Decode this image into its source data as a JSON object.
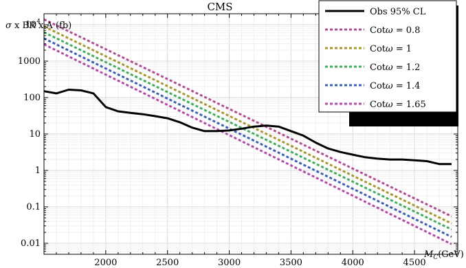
{
  "chart_data": {
    "type": "line",
    "title": "CMS",
    "ylabel": "σ x BR x A (fb)",
    "xlabel": "M_C(GeV)",
    "xlabel_main": "M",
    "xlabel_sub": "C",
    "xlabel_unit": "(GeV)",
    "xlim": [
      1500,
      4850
    ],
    "ylim": [
      0.005,
      20000
    ],
    "yscale": "log",
    "grid": true,
    "legend_position": "top-right",
    "x_ticks": [
      2000,
      2500,
      3000,
      3500,
      4000,
      4500
    ],
    "y_ticks": [
      {
        "value": 0.01,
        "label": "0.01"
      },
      {
        "value": 0.1,
        "label": "0.1"
      },
      {
        "value": 1,
        "label": "1"
      },
      {
        "value": 10,
        "label": "10"
      },
      {
        "value": 100,
        "label": "100"
      },
      {
        "value": 1000,
        "label": "1000"
      },
      {
        "value": 10000,
        "label": "10",
        "sup": "4"
      }
    ],
    "observed": {
      "name": "Obs 95% CL",
      "color": "#000000",
      "points": [
        [
          1500,
          150
        ],
        [
          1600,
          130
        ],
        [
          1700,
          165
        ],
        [
          1800,
          158
        ],
        [
          1900,
          130
        ],
        [
          2000,
          55
        ],
        [
          2100,
          42
        ],
        [
          2200,
          38
        ],
        [
          2300,
          35
        ],
        [
          2400,
          31
        ],
        [
          2500,
          27
        ],
        [
          2600,
          21
        ],
        [
          2700,
          15
        ],
        [
          2800,
          12
        ],
        [
          2900,
          12
        ],
        [
          3000,
          12.5
        ],
        [
          3100,
          14
        ],
        [
          3200,
          16
        ],
        [
          3300,
          17
        ],
        [
          3400,
          16
        ],
        [
          3500,
          12
        ],
        [
          3600,
          9
        ],
        [
          3700,
          5.8
        ],
        [
          3800,
          4
        ],
        [
          3900,
          3.2
        ],
        [
          4000,
          2.7
        ],
        [
          4100,
          2.3
        ],
        [
          4200,
          2.1
        ],
        [
          4300,
          2
        ],
        [
          4400,
          2
        ],
        [
          4500,
          1.9
        ],
        [
          4600,
          1.8
        ],
        [
          4700,
          1.5
        ],
        [
          4800,
          1.5
        ]
      ]
    },
    "series": [
      {
        "name": "Cotω = 0.8",
        "label_prefix": "Cot",
        "label_greek": "ω",
        "label_value": " = 0.8",
        "color": "#b24c92",
        "points": [
          [
            1500,
            14000
          ],
          [
            4800,
            0.055
          ]
        ]
      },
      {
        "name": "Cotω = 1",
        "label_prefix": "Cot",
        "label_greek": "ω",
        "label_value": " = 1",
        "color": "#a8962e",
        "points": [
          [
            1500,
            9000
          ],
          [
            4800,
            0.035
          ]
        ]
      },
      {
        "name": "Cotω = 1.2",
        "label_prefix": "Cot",
        "label_greek": "ω",
        "label_value": " = 1.2",
        "color": "#3fae5a",
        "points": [
          [
            1500,
            6200
          ],
          [
            4800,
            0.024
          ]
        ]
      },
      {
        "name": "Cotω = 1.4",
        "label_prefix": "Cot",
        "label_greek": "ω",
        "label_value": " = 1.4",
        "color": "#3a5fb5",
        "points": [
          [
            1500,
            4200
          ],
          [
            4800,
            0.015
          ]
        ]
      },
      {
        "name": "Cotω = 1.65",
        "label_prefix": "Cot",
        "label_greek": "ω",
        "label_value": " = 1.65",
        "color": "#b44aa8",
        "points": [
          [
            1500,
            2900
          ],
          [
            4800,
            0.0095
          ]
        ]
      }
    ]
  }
}
